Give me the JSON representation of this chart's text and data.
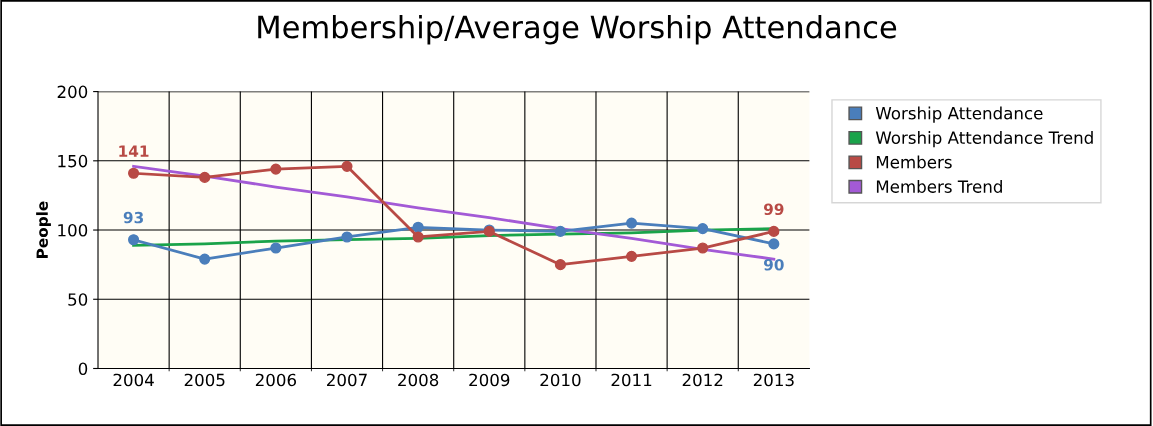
{
  "chart_data": {
    "type": "line",
    "title": "Membership/Average Worship Attendance",
    "ylabel": "People",
    "categories": [
      "2004",
      "2005",
      "2006",
      "2007",
      "2008",
      "2009",
      "2010",
      "2011",
      "2012",
      "2013"
    ],
    "series": [
      {
        "name": "Worship Attendance",
        "color": "#4a7ebb",
        "marker": "circle",
        "values": [
          93,
          79,
          87,
          95,
          102,
          100,
          99,
          105,
          101,
          90
        ],
        "value_labels": [
          "93",
          null,
          null,
          null,
          null,
          null,
          null,
          null,
          null,
          "90"
        ]
      },
      {
        "name": "Worship Attendance Trend",
        "color": "#1aa34a",
        "marker": "none",
        "values": [
          89,
          90,
          92,
          93,
          94,
          96,
          97,
          98,
          100,
          101
        ]
      },
      {
        "name": "Members",
        "color": "#b84a45",
        "marker": "circle",
        "values": [
          141,
          138,
          144,
          146,
          95,
          99,
          75,
          81,
          87,
          99
        ],
        "value_labels": [
          "141",
          null,
          null,
          null,
          null,
          null,
          null,
          null,
          null,
          "99"
        ]
      },
      {
        "name": "Members Trend",
        "color": "#a35ad6",
        "marker": "none",
        "values": [
          146,
          139,
          131,
          124,
          116,
          109,
          101,
          94,
          86,
          79
        ]
      }
    ],
    "ylim": [
      0,
      200
    ],
    "yticks": [
      0,
      50,
      100,
      150,
      200
    ],
    "grid": true,
    "legend": "right"
  }
}
